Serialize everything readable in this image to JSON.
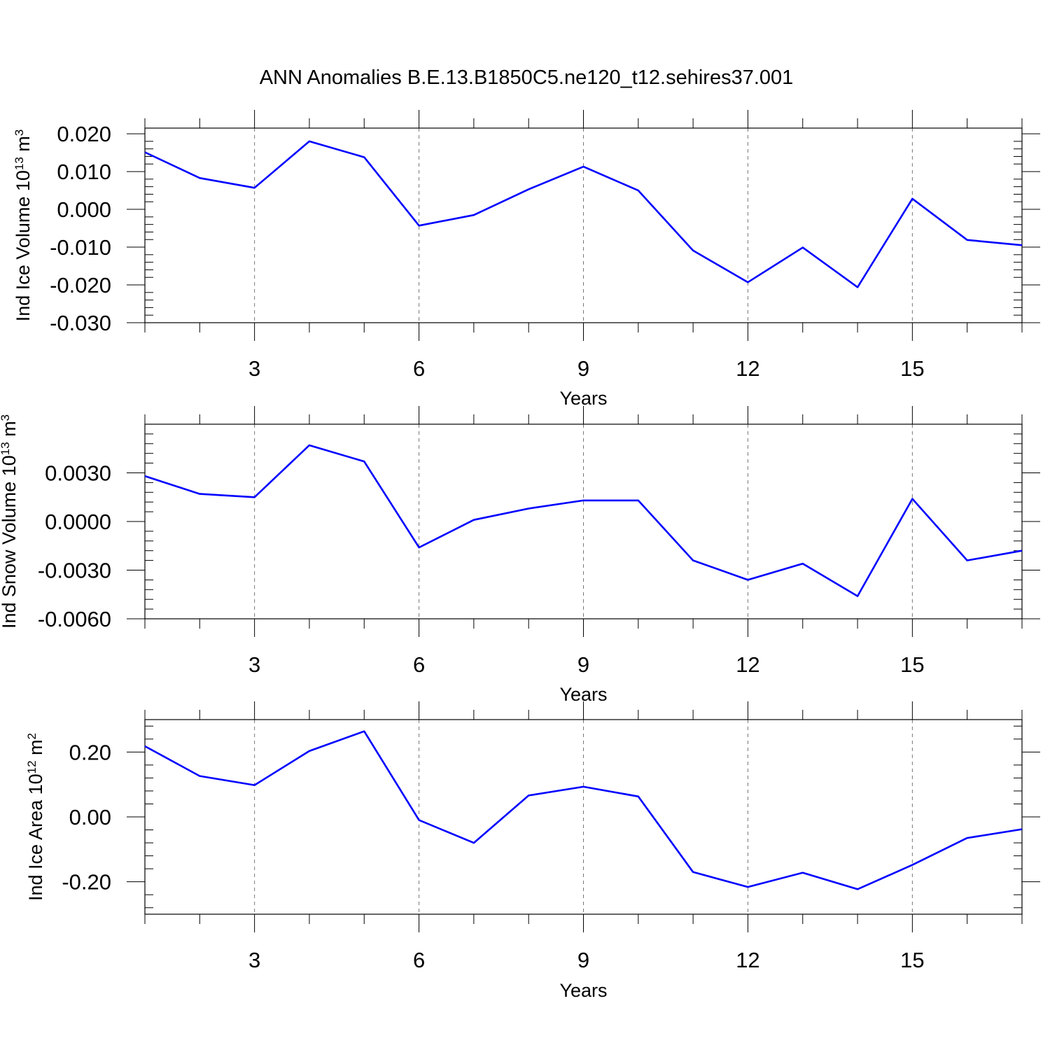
{
  "title": "ANN Anomalies B.E.13.B1850C5.ne120_t12.sehires37.001",
  "line_color": "#0000ff",
  "chart_data": [
    {
      "type": "line",
      "ylabel": "Ind Ice Volume 10",
      "ylabel_exponent": "13",
      "ylabel_unit": "m",
      "ylabel_unit_exponent": "3",
      "xlabel": "Years",
      "xlim": [
        1,
        17
      ],
      "ylim": [
        -0.03,
        0.0215
      ],
      "xticks": [
        "3",
        "6",
        "9",
        "12",
        "15"
      ],
      "xtick_values": [
        3,
        6,
        9,
        12,
        15
      ],
      "ytick_values": [
        -0.03,
        -0.02,
        -0.01,
        0.0,
        0.01,
        0.02
      ],
      "yticks": [
        "-0.030",
        "-0.020",
        "-0.010",
        "0.000",
        "0.010",
        "0.020"
      ],
      "x": [
        1,
        2,
        3,
        4,
        5,
        6,
        7,
        8,
        9,
        10,
        11,
        12,
        13,
        14,
        15,
        16,
        17
      ],
      "y": [
        0.0151,
        0.0083,
        0.0057,
        0.018,
        0.0138,
        -0.0043,
        -0.0015,
        0.0053,
        0.0113,
        0.005,
        -0.0109,
        -0.0193,
        -0.0101,
        -0.0206,
        0.0028,
        -0.0081,
        -0.0095
      ]
    },
    {
      "type": "line",
      "ylabel": "Ind Snow Volume 10",
      "ylabel_exponent": "13",
      "ylabel_unit": "m",
      "ylabel_unit_exponent": "3",
      "xlabel": "Years",
      "xlim": [
        1,
        17
      ],
      "ylim": [
        -0.006,
        0.006
      ],
      "xticks": [
        "3",
        "6",
        "9",
        "12",
        "15"
      ],
      "xtick_values": [
        3,
        6,
        9,
        12,
        15
      ],
      "ytick_values": [
        -0.006,
        -0.003,
        0.0,
        0.003
      ],
      "yticks": [
        "-0.0060",
        "-0.0030",
        "0.0000",
        "0.0030"
      ],
      "x": [
        1,
        2,
        3,
        4,
        5,
        6,
        7,
        8,
        9,
        10,
        11,
        12,
        13,
        14,
        15,
        16,
        17
      ],
      "y": [
        0.0028,
        0.0017,
        0.0015,
        0.0047,
        0.0037,
        -0.0016,
        0.0001,
        0.0008,
        0.0013,
        0.0013,
        -0.0024,
        -0.0036,
        -0.0026,
        -0.0046,
        0.0014,
        -0.0024,
        -0.0018
      ]
    },
    {
      "type": "line",
      "ylabel": "Ind Ice Area 10",
      "ylabel_exponent": "12",
      "ylabel_unit": "m",
      "ylabel_unit_exponent": "2",
      "xlabel": "Years",
      "xlim": [
        1,
        17
      ],
      "ylim": [
        -0.3,
        0.3
      ],
      "xticks": [
        "3",
        "6",
        "9",
        "12",
        "15"
      ],
      "xtick_values": [
        3,
        6,
        9,
        12,
        15
      ],
      "ytick_values": [
        -0.2,
        0.0,
        0.2
      ],
      "yticks": [
        "-0.20",
        "0.00",
        "0.20"
      ],
      "x": [
        1,
        2,
        3,
        4,
        5,
        6,
        7,
        8,
        9,
        10,
        11,
        12,
        13,
        14,
        15,
        16,
        17
      ],
      "y": [
        0.218,
        0.126,
        0.098,
        0.203,
        0.264,
        -0.01,
        -0.08,
        0.066,
        0.093,
        0.063,
        -0.17,
        -0.216,
        -0.172,
        -0.223,
        -0.148,
        -0.065,
        -0.038
      ]
    }
  ]
}
